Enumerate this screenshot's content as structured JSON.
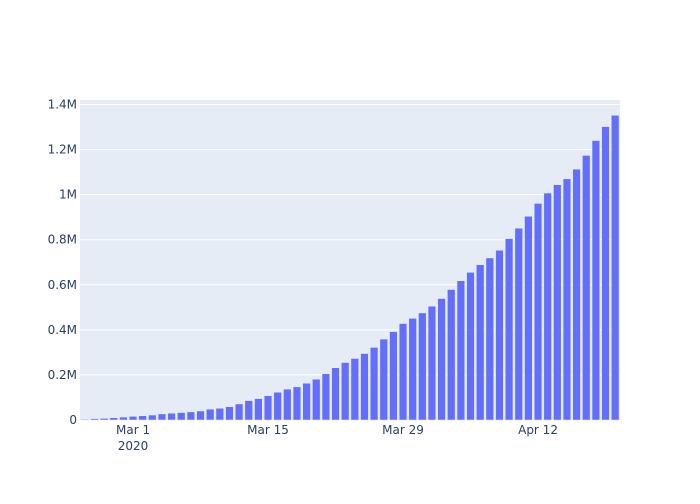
{
  "chart_data": {
    "type": "bar",
    "title": "",
    "xlabel": "",
    "ylabel": "",
    "bar_color": "#636efa",
    "plot_bg": "#e5ecf6",
    "grid": true,
    "ylim": [
      0,
      1.42
    ],
    "y_unit": "M",
    "y_ticks": [
      {
        "value": 0,
        "label": "0"
      },
      {
        "value": 0.2,
        "label": "0.2M"
      },
      {
        "value": 0.4,
        "label": "0.4M"
      },
      {
        "value": 0.6,
        "label": "0.6M"
      },
      {
        "value": 0.8,
        "label": "0.8M"
      },
      {
        "value": 1.0,
        "label": "1M"
      },
      {
        "value": 1.2,
        "label": "1.2M"
      },
      {
        "value": 1.4,
        "label": "1.4M"
      }
    ],
    "x_ticks": [
      {
        "date": "2020-03-01",
        "label": "Mar 1",
        "sublabel": "2020"
      },
      {
        "date": "2020-03-15",
        "label": "Mar 15",
        "sublabel": ""
      },
      {
        "date": "2020-03-29",
        "label": "Mar 29",
        "sublabel": ""
      },
      {
        "date": "2020-04-12",
        "label": "Apr 12",
        "sublabel": ""
      }
    ],
    "x": [
      "2020-02-25",
      "2020-02-26",
      "2020-02-27",
      "2020-02-28",
      "2020-02-29",
      "2020-03-01",
      "2020-03-02",
      "2020-03-03",
      "2020-03-04",
      "2020-03-05",
      "2020-03-06",
      "2020-03-07",
      "2020-03-08",
      "2020-03-09",
      "2020-03-10",
      "2020-03-11",
      "2020-03-12",
      "2020-03-13",
      "2020-03-14",
      "2020-03-15",
      "2020-03-16",
      "2020-03-17",
      "2020-03-18",
      "2020-03-19",
      "2020-03-20",
      "2020-03-21",
      "2020-03-22",
      "2020-03-23",
      "2020-03-24",
      "2020-03-25",
      "2020-03-26",
      "2020-03-27",
      "2020-03-28",
      "2020-03-29",
      "2020-03-30",
      "2020-03-31",
      "2020-04-01",
      "2020-04-02",
      "2020-04-03",
      "2020-04-04",
      "2020-04-05",
      "2020-04-06",
      "2020-04-07",
      "2020-04-08",
      "2020-04-09",
      "2020-04-10",
      "2020-04-11",
      "2020-04-12",
      "2020-04-13",
      "2020-04-14",
      "2020-04-15",
      "2020-04-16",
      "2020-04-17",
      "2020-04-18",
      "2020-04-19",
      "2020-04-20"
    ],
    "values": [
      3000,
      6000,
      7000,
      10000,
      13000,
      16000,
      19000,
      22000,
      27000,
      30000,
      33000,
      36000,
      40000,
      48000,
      52000,
      59000,
      71000,
      86000,
      95000,
      108000,
      123000,
      137000,
      147000,
      163000,
      181000,
      205000,
      232000,
      255000,
      273000,
      295000,
      322000,
      359000,
      392000,
      428000,
      451000,
      475000,
      505000,
      539000,
      579000,
      618000,
      655000,
      689000,
      719000,
      753000,
      805000,
      851000,
      904000,
      961000,
      1007000,
      1044000,
      1070000,
      1113000,
      1174000,
      1240000,
      1302000,
      1352000
    ]
  }
}
